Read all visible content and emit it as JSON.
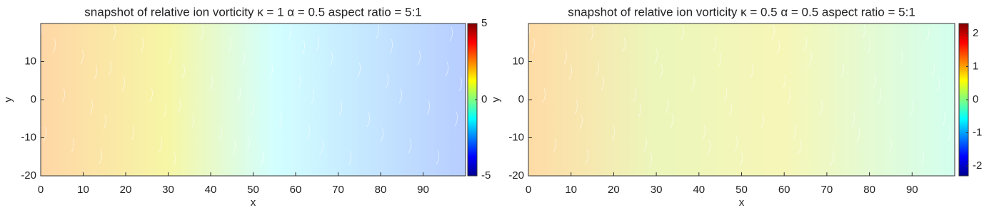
{
  "chart_data": [
    {
      "type": "contour",
      "title": "snapshot of relative ion vorticity  κ = 1 α = 0.5 aspect ratio = 5:1",
      "xlabel": "x",
      "ylabel": "y",
      "colormap": "jet",
      "xlim": [
        0,
        100
      ],
      "xticks": [
        0,
        10,
        20,
        30,
        40,
        50,
        60,
        70,
        80,
        90
      ],
      "ylim": [
        -20,
        20
      ],
      "yticks": [
        -20,
        -10,
        0,
        10
      ],
      "clim": [
        -5,
        5
      ],
      "cticks": [
        -5,
        0,
        5
      ]
    },
    {
      "type": "contour",
      "title": "snapshot of relative ion vorticity  κ = 0.5 α = 0.5 aspect ratio = 5:1",
      "xlabel": "x",
      "ylabel": "y",
      "colormap": "jet",
      "xlim": [
        0,
        100
      ],
      "xticks": [
        0,
        10,
        20,
        30,
        40,
        50,
        60,
        70,
        80,
        90
      ],
      "ylim": [
        -20,
        20
      ],
      "yticks": [
        -20,
        -10,
        0,
        10
      ],
      "clim": [
        -2.3,
        2.3
      ],
      "cticks": [
        -2,
        -1,
        0,
        1,
        2
      ]
    }
  ]
}
